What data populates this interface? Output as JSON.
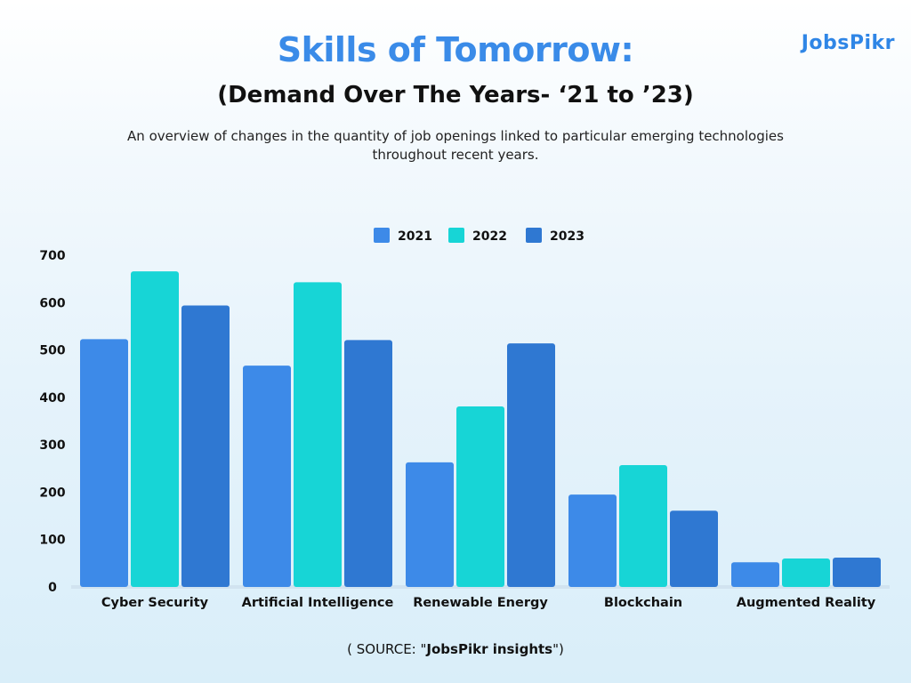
{
  "header": {
    "title": "Skills of Tomorrow:",
    "subtitle": "(Demand Over The Years- ‘21 to ’23)",
    "description": "An overview of changes in the quantity of job openings linked to particular emerging technologies throughout recent years.",
    "logo_text": "JobsPikr"
  },
  "source": {
    "prefix": "( SOURCE: \"",
    "name": "JobsPikr insights",
    "suffix": "\")"
  },
  "colors": {
    "title": "#3a8be8",
    "series_2021": "#3d8ae8",
    "series_2022": "#17d5d6",
    "series_2023": "#2f78d2"
  },
  "chart_data": {
    "type": "bar",
    "categories": [
      "Cyber Security",
      "Artificial Intelligence",
      "Renewable Energy",
      "Blockchain",
      "Augmented Reality"
    ],
    "series": [
      {
        "name": "2021",
        "color": "#3d8ae8",
        "values": [
          523,
          467,
          263,
          195,
          52
        ]
      },
      {
        "name": "2022",
        "color": "#17d5d6",
        "values": [
          666,
          643,
          381,
          257,
          60
        ]
      },
      {
        "name": "2023",
        "color": "#2f78d2",
        "values": [
          594,
          521,
          514,
          161,
          62
        ]
      }
    ],
    "yticks": [
      0,
      100,
      200,
      300,
      400,
      500,
      600,
      700
    ],
    "ylim": [
      0,
      700
    ],
    "legend_position": "top-center",
    "grid": false
  }
}
